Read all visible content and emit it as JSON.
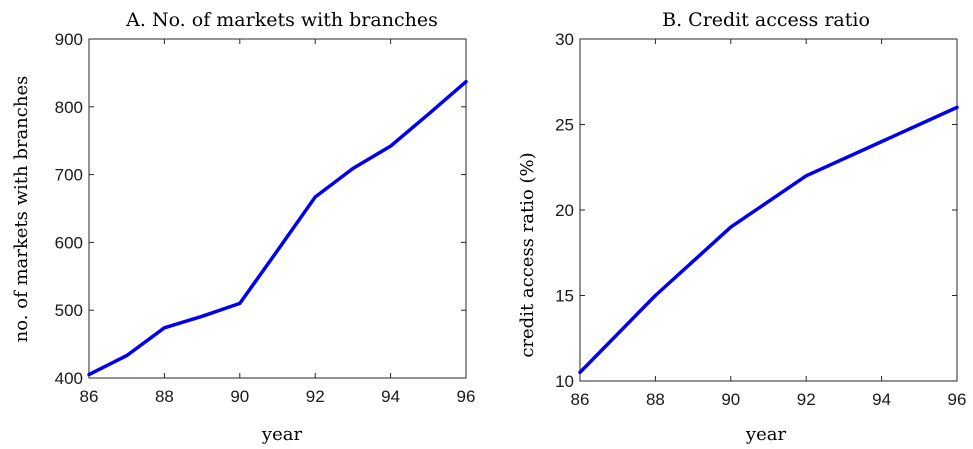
{
  "chart_data": [
    {
      "type": "line",
      "title": "A. No. of markets with branches",
      "xlabel": "year",
      "ylabel": "no. of markets with branches",
      "xlim": [
        86,
        96
      ],
      "ylim": [
        400,
        900
      ],
      "xticks": [
        "86",
        "88",
        "90",
        "92",
        "94",
        "96"
      ],
      "yticks": [
        "400",
        "500",
        "600",
        "700",
        "800",
        "900"
      ],
      "grid": false,
      "line_color": "#0000ee",
      "series": [
        {
          "x": [
            86,
            87,
            88,
            89,
            90,
            91,
            92,
            93,
            94,
            95,
            96
          ],
          "y": [
            405,
            433,
            474,
            491,
            510,
            588,
            667,
            709,
            742,
            789,
            837
          ]
        }
      ]
    },
    {
      "type": "line",
      "title": "B. Credit access ratio",
      "xlabel": "year",
      "ylabel": "credit access ratio (%)",
      "xlim": [
        86,
        96
      ],
      "ylim": [
        10,
        30
      ],
      "xticks": [
        "86",
        "88",
        "90",
        "92",
        "94",
        "96"
      ],
      "yticks": [
        "10",
        "15",
        "20",
        "25",
        "30"
      ],
      "grid": false,
      "line_color": "#0000ee",
      "series": [
        {
          "x": [
            86,
            88,
            90,
            92,
            94,
            96
          ],
          "y": [
            10.5,
            15,
            19,
            22,
            24,
            26
          ]
        }
      ]
    }
  ]
}
